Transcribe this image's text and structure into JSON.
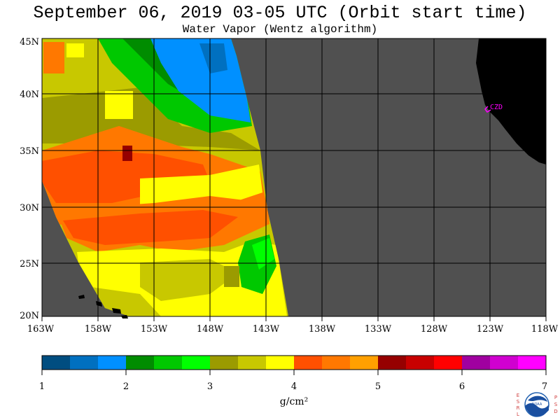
{
  "header": {
    "title": "September 06, 2019  03-05 UTC  (Orbit start time)",
    "subtitle": "Water Vapor (Wentz algorithm)"
  },
  "map": {
    "lat_labels": [
      "45N",
      "40N",
      "35N",
      "30N",
      "25N",
      "20N"
    ],
    "lon_labels": [
      "163W",
      "158W",
      "153W",
      "148W",
      "143W",
      "138W",
      "133W",
      "128W",
      "123W",
      "118W"
    ],
    "lat_range": [
      20,
      45
    ],
    "lon_range": [
      -163,
      -118
    ],
    "station_label": "CZD",
    "colors": {
      "no_data": "#505050",
      "land": "#000000",
      "station": "#ff00ff",
      "grid": "#000000"
    }
  },
  "colorbar": {
    "tick_labels": [
      "1",
      "2",
      "3",
      "4",
      "5",
      "6",
      "7"
    ],
    "unit": "g/cm²",
    "colors": [
      "#004d80",
      "#0070c0",
      "#0090ff",
      "#008c00",
      "#00c800",
      "#00ff00",
      "#9b9b00",
      "#c8c800",
      "#ffff00",
      "#ff5000",
      "#ff7800",
      "#ffa000",
      "#960000",
      "#c80000",
      "#ff0000",
      "#a000a0",
      "#d000d0",
      "#ff00ff"
    ]
  },
  "logo": {
    "left_letters": [
      "E",
      "S",
      "R",
      "L"
    ],
    "right_letters": [
      "P",
      "S",
      "D"
    ],
    "center": "NOAA"
  }
}
